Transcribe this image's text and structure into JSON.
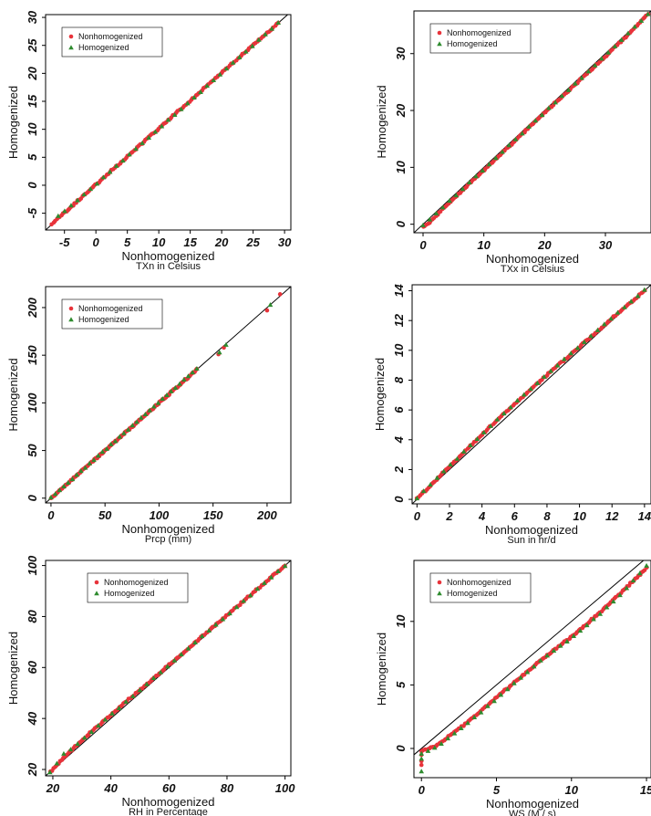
{
  "figure": {
    "colors": {
      "nonhomogenized": "#e8333a",
      "homogenized": "#2e8b2e",
      "line": "#000000",
      "frame": "#000000"
    },
    "legend_entries": [
      "Nonhomogenized",
      "Homogenized"
    ]
  },
  "chart_data": [
    {
      "type": "scatter",
      "panel": "txn",
      "xlabel": "Nonhomogenized",
      "xlabel_sub": "TXn in Celsius",
      "ylabel": "Homogenized",
      "xlim": [
        -8,
        31
      ],
      "ylim": [
        -8,
        30.5
      ],
      "xticks": [
        -5,
        0,
        5,
        10,
        15,
        20,
        25,
        30
      ],
      "xtick_labels": [
        "-5",
        "0",
        "5",
        "10",
        "15",
        "20",
        "25",
        "30"
      ],
      "yticks": [
        -5,
        0,
        5,
        10,
        15,
        20,
        25,
        30
      ],
      "ytick_labels": [
        "-5",
        "0",
        "5",
        "10",
        "15",
        "20",
        "25",
        "30"
      ],
      "legend_position": "top-left",
      "reference_line": [
        [
          -8,
          -8
        ],
        [
          31,
          31
        ]
      ],
      "nonhomogenized_points": {
        "x_range": [
          -7,
          29
        ],
        "offsets": [
          [
            -7,
            0.1
          ],
          [
            -3,
            0.1
          ],
          [
            0,
            0.1
          ],
          [
            5,
            0.1
          ],
          [
            10,
            0.15
          ],
          [
            15,
            0.1
          ],
          [
            20,
            0.1
          ],
          [
            25,
            0.05
          ],
          [
            29,
            0
          ]
        ]
      },
      "homogenized_points": {
        "x_range": [
          -6,
          29
        ],
        "offsets": [
          [
            -6,
            0.5
          ],
          [
            -3,
            0.3
          ],
          [
            0,
            0.2
          ],
          [
            5,
            0.15
          ],
          [
            10,
            0.15
          ],
          [
            15,
            0.1
          ],
          [
            20,
            0.1
          ],
          [
            25,
            0.05
          ],
          [
            29,
            0
          ]
        ]
      }
    },
    {
      "type": "scatter",
      "panel": "txx",
      "xlabel": "Nonhomogenized",
      "xlabel_sub": "TXx in Celsius",
      "ylabel": "Homogenized",
      "xlim": [
        -1.5,
        37.5
      ],
      "ylim": [
        -1.5,
        37.5
      ],
      "xticks": [
        0,
        10,
        20,
        30
      ],
      "xtick_labels": [
        "0",
        "10",
        "20",
        "30"
      ],
      "yticks": [
        0,
        10,
        20,
        30
      ],
      "ytick_labels": [
        "0",
        "10",
        "20",
        "30"
      ],
      "legend_position": "top-left",
      "reference_line": [
        [
          -1.5,
          -1.5
        ],
        [
          37.5,
          37.5
        ]
      ],
      "nonhomogenized_points": {
        "x_range": [
          0,
          37
        ],
        "offsets": [
          [
            0,
            -0.4
          ],
          [
            1,
            -0.8
          ],
          [
            2,
            -0.6
          ],
          [
            5,
            -0.5
          ],
          [
            10,
            -0.5
          ],
          [
            20,
            -0.4
          ],
          [
            30,
            -0.5
          ],
          [
            35,
            -0.3
          ],
          [
            37,
            0
          ]
        ]
      },
      "homogenized_points": {
        "x_range": [
          0,
          37
        ],
        "offsets": [
          [
            0,
            -0.2
          ],
          [
            5,
            -0.3
          ],
          [
            10,
            -0.3
          ],
          [
            20,
            -0.3
          ],
          [
            30,
            -0.3
          ],
          [
            37,
            0
          ]
        ]
      }
    },
    {
      "type": "scatter",
      "panel": "prcp",
      "xlabel": "Nonhomogenized",
      "xlabel_sub": "Prcp (mm)",
      "ylabel": "Homogenized",
      "xlim": [
        -5,
        222
      ],
      "ylim": [
        -5,
        222
      ],
      "xticks": [
        0,
        50,
        100,
        150,
        200
      ],
      "xtick_labels": [
        "0",
        "50",
        "100",
        "150",
        "200"
      ],
      "yticks": [
        0,
        50,
        100,
        150,
        200
      ],
      "ytick_labels": [
        "0",
        "50",
        "100",
        "150",
        "200"
      ],
      "legend_position": "top-left",
      "reference_line": [
        [
          -5,
          -5
        ],
        [
          222,
          222
        ]
      ],
      "nonhomogenized_points": {
        "x_range": [
          0,
          135
        ],
        "offsets": [
          [
            0,
            0
          ],
          [
            135,
            0
          ]
        ],
        "extra": [
          [
            155,
            151
          ],
          [
            160,
            158
          ],
          [
            200,
            197
          ],
          [
            212,
            214
          ]
        ]
      },
      "homogenized_points": {
        "x_range": [
          0,
          135
        ],
        "offsets": [
          [
            0,
            0.5
          ],
          [
            135,
            1
          ]
        ],
        "extra": [
          [
            156,
            153
          ],
          [
            162,
            161
          ],
          [
            203,
            203
          ]
        ]
      }
    },
    {
      "type": "scatter",
      "panel": "sun",
      "xlabel": "Nonhomogenized",
      "xlabel_sub": "Sun in hr/d",
      "ylabel": "Homogenized",
      "xlim": [
        -0.3,
        14.4
      ],
      "ylim": [
        -0.3,
        14.4
      ],
      "xticks": [
        0,
        2,
        4,
        6,
        8,
        10,
        12,
        14
      ],
      "xtick_labels": [
        "0",
        "2",
        "4",
        "6",
        "8",
        "10",
        "12",
        "14"
      ],
      "yticks": [
        0,
        2,
        4,
        6,
        8,
        10,
        12,
        14
      ],
      "ytick_labels": [
        "0",
        "2",
        "4",
        "6",
        "8",
        "10",
        "12",
        "14"
      ],
      "legend_position": "none",
      "reference_line": [
        [
          -0.3,
          -0.3
        ],
        [
          14.4,
          14.4
        ]
      ],
      "nonhomogenized_points": {
        "x_range": [
          0,
          14
        ],
        "offsets": [
          [
            0,
            0.05
          ],
          [
            2,
            0.2
          ],
          [
            4,
            0.35
          ],
          [
            6,
            0.4
          ],
          [
            8,
            0.35
          ],
          [
            10,
            0.25
          ],
          [
            12,
            0.15
          ],
          [
            14,
            0
          ]
        ]
      },
      "homogenized_points": {
        "x_range": [
          0,
          14
        ],
        "offsets": [
          [
            0,
            0.1
          ],
          [
            2,
            0.25
          ],
          [
            4,
            0.4
          ],
          [
            6,
            0.45
          ],
          [
            8,
            0.4
          ],
          [
            10,
            0.3
          ],
          [
            12,
            0.2
          ],
          [
            14,
            0.05
          ]
        ]
      }
    },
    {
      "type": "scatter",
      "panel": "rh",
      "xlabel": "Nonhomogenized",
      "xlabel_sub": "RH in Percentage",
      "ylabel": "Homogenized",
      "xlim": [
        17.5,
        102
      ],
      "ylim": [
        17.5,
        102
      ],
      "xticks": [
        20,
        40,
        60,
        80,
        100
      ],
      "xtick_labels": [
        "20",
        "40",
        "60",
        "80",
        "100"
      ],
      "yticks": [
        20,
        40,
        60,
        80,
        100
      ],
      "ytick_labels": [
        "20",
        "40",
        "60",
        "80",
        "100"
      ],
      "legend_position": "top-center",
      "reference_line": [
        [
          17.5,
          17.5
        ],
        [
          102,
          102
        ]
      ],
      "nonhomogenized_points": {
        "x_range": [
          19,
          100
        ],
        "offsets": [
          [
            19,
            0
          ],
          [
            25,
            1
          ],
          [
            30,
            1.5
          ],
          [
            40,
            1.5
          ],
          [
            50,
            1.2
          ],
          [
            60,
            1
          ],
          [
            70,
            0.8
          ],
          [
            80,
            0.5
          ],
          [
            90,
            0.3
          ],
          [
            100,
            0
          ]
        ]
      },
      "homogenized_points": {
        "x_range": [
          19,
          100
        ],
        "offsets": [
          [
            19,
            0
          ],
          [
            24,
            2.5
          ],
          [
            25,
            2
          ],
          [
            30,
            1.5
          ],
          [
            40,
            1.5
          ],
          [
            50,
            1.2
          ],
          [
            60,
            1
          ],
          [
            70,
            0.8
          ],
          [
            80,
            0.5
          ],
          [
            90,
            0.3
          ],
          [
            100,
            0
          ]
        ]
      }
    },
    {
      "type": "scatter",
      "panel": "ws",
      "xlabel": "Nonhomogenized",
      "xlabel_sub": "WS (M / s)",
      "ylabel": "Homogenized",
      "xlim": [
        -0.5,
        15.3
      ],
      "ylim": [
        -2.3,
        14.8
      ],
      "xticks": [
        0,
        5,
        10,
        15
      ],
      "xtick_labels": [
        "0",
        "5",
        "10",
        "15"
      ],
      "yticks": [
        0,
        5,
        10
      ],
      "ytick_labels": [
        "0",
        "5",
        "10"
      ],
      "legend_position": "top-left",
      "reference_line": [
        [
          -0.5,
          -0.5
        ],
        [
          15.3,
          15.3
        ]
      ],
      "nonhomogenized_points": {
        "x_range": [
          0,
          15
        ],
        "offsets": [
          [
            0,
            -0.2
          ],
          [
            1,
            -0.8
          ],
          [
            3,
            -1.0
          ],
          [
            5,
            -1.0
          ],
          [
            8,
            -1.0
          ],
          [
            10,
            -1.2
          ],
          [
            12,
            -1.2
          ],
          [
            13.5,
            -1.0
          ],
          [
            15,
            -0.8
          ]
        ],
        "extra": [
          [
            0,
            -0.5
          ],
          [
            0,
            -1.0
          ],
          [
            0,
            -1.3
          ]
        ]
      },
      "homogenized_points": {
        "x_range": [
          0,
          15
        ],
        "offsets": [
          [
            0,
            -0.4
          ],
          [
            1,
            -0.9
          ],
          [
            3,
            -1.1
          ],
          [
            5,
            -1.1
          ],
          [
            8,
            -1.0
          ],
          [
            10,
            -1.3
          ],
          [
            12,
            -1.3
          ],
          [
            13.5,
            -1.1
          ],
          [
            15,
            -0.6
          ]
        ],
        "extra": [
          [
            0,
            -1.8
          ],
          [
            0,
            -0.8
          ]
        ]
      }
    }
  ]
}
